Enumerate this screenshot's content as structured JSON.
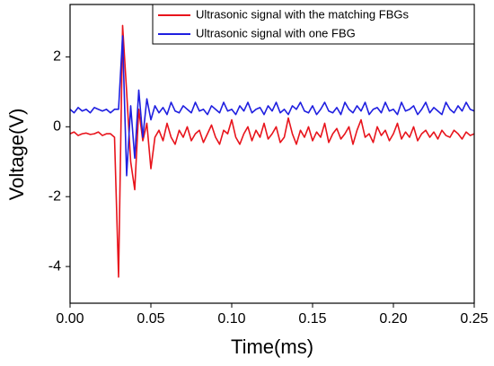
{
  "chart_data": {
    "type": "line",
    "x_label": "Time(ms)",
    "y_label": "Voltage(V)",
    "x": [
      0,
      0.0025,
      0.005,
      0.0075,
      0.01,
      0.0125,
      0.015,
      0.0175,
      0.02,
      0.0225,
      0.025,
      0.0275,
      0.03,
      0.0325,
      0.035,
      0.0375,
      0.04,
      0.0425,
      0.045,
      0.0475,
      0.05,
      0.0525,
      0.055,
      0.0575,
      0.06,
      0.0625,
      0.065,
      0.0675,
      0.07,
      0.0725,
      0.075,
      0.0775,
      0.08,
      0.0825,
      0.085,
      0.0875,
      0.09,
      0.0925,
      0.095,
      0.0975,
      0.1,
      0.1025,
      0.105,
      0.1075,
      0.11,
      0.1125,
      0.115,
      0.1175,
      0.12,
      0.1225,
      0.125,
      0.1275,
      0.13,
      0.1325,
      0.135,
      0.1375,
      0.14,
      0.1425,
      0.145,
      0.1475,
      0.15,
      0.1525,
      0.155,
      0.1575,
      0.16,
      0.1625,
      0.165,
      0.1675,
      0.17,
      0.1725,
      0.175,
      0.1775,
      0.18,
      0.1825,
      0.185,
      0.1875,
      0.19,
      0.1925,
      0.195,
      0.1975,
      0.2,
      0.2025,
      0.205,
      0.2075,
      0.21,
      0.2125,
      0.215,
      0.2175,
      0.22,
      0.2225,
      0.225,
      0.2275,
      0.23,
      0.2325,
      0.235,
      0.2375,
      0.24,
      0.2425,
      0.245,
      0.2475,
      0.25
    ],
    "series": [
      {
        "name": "Ultrasonic signal with the matching FBGs",
        "color": "#e8141c",
        "values": [
          -0.2,
          -0.15,
          -0.25,
          -0.2,
          -0.18,
          -0.22,
          -0.2,
          -0.15,
          -0.25,
          -0.2,
          -0.2,
          -0.3,
          -4.3,
          2.9,
          1.0,
          -1.0,
          -1.8,
          0.5,
          -0.4,
          0.1,
          -1.2,
          -0.3,
          -0.1,
          -0.4,
          0.1,
          -0.3,
          -0.5,
          -0.1,
          -0.3,
          0.0,
          -0.4,
          -0.2,
          -0.1,
          -0.45,
          -0.2,
          0.05,
          -0.3,
          -0.5,
          -0.1,
          -0.2,
          0.2,
          -0.3,
          -0.5,
          -0.2,
          0.0,
          -0.4,
          -0.1,
          -0.3,
          0.1,
          -0.35,
          -0.2,
          0.0,
          -0.45,
          -0.3,
          0.25,
          -0.2,
          -0.5,
          -0.1,
          -0.3,
          0.0,
          -0.4,
          -0.15,
          -0.3,
          0.1,
          -0.45,
          -0.2,
          -0.05,
          -0.35,
          -0.2,
          0.0,
          -0.5,
          -0.1,
          0.2,
          -0.3,
          -0.2,
          -0.45,
          0.0,
          -0.25,
          -0.1,
          -0.4,
          -0.2,
          0.1,
          -0.35,
          -0.15,
          -0.3,
          0.0,
          -0.4,
          -0.2,
          -0.1,
          -0.3,
          -0.15,
          -0.35,
          -0.1,
          -0.25,
          -0.3,
          -0.1,
          -0.2,
          -0.35,
          -0.15,
          -0.25,
          -0.2
        ]
      },
      {
        "name": "Ultrasonic signal with one FBG",
        "color": "#1f1fe0",
        "values": [
          0.5,
          0.4,
          0.55,
          0.45,
          0.5,
          0.4,
          0.55,
          0.5,
          0.45,
          0.5,
          0.4,
          0.5,
          0.5,
          2.6,
          -1.4,
          0.6,
          -0.9,
          1.05,
          -0.3,
          0.8,
          0.2,
          0.6,
          0.4,
          0.55,
          0.35,
          0.7,
          0.45,
          0.4,
          0.6,
          0.5,
          0.4,
          0.7,
          0.45,
          0.5,
          0.35,
          0.6,
          0.5,
          0.4,
          0.7,
          0.45,
          0.5,
          0.35,
          0.6,
          0.45,
          0.7,
          0.4,
          0.5,
          0.55,
          0.35,
          0.6,
          0.45,
          0.7,
          0.4,
          0.5,
          0.35,
          0.6,
          0.5,
          0.7,
          0.45,
          0.4,
          0.6,
          0.35,
          0.5,
          0.7,
          0.45,
          0.4,
          0.55,
          0.35,
          0.7,
          0.5,
          0.4,
          0.6,
          0.45,
          0.7,
          0.35,
          0.5,
          0.55,
          0.4,
          0.7,
          0.45,
          0.5,
          0.35,
          0.7,
          0.45,
          0.5,
          0.6,
          0.35,
          0.5,
          0.7,
          0.4,
          0.55,
          0.45,
          0.35,
          0.7,
          0.5,
          0.4,
          0.6,
          0.45,
          0.7,
          0.5,
          0.45
        ]
      }
    ],
    "xlim": [
      0,
      0.25
    ],
    "xticks": [
      {
        "value": 0,
        "label": "0.00"
      },
      0.05,
      {
        "value": 0.1,
        "label": "0.10"
      },
      0.15,
      {
        "value": 0.2,
        "label": "0.20"
      },
      0.25
    ],
    "ylim": [
      -5.05,
      3.5
    ],
    "yticks": [
      -4,
      -2,
      0,
      2
    ],
    "grid": false,
    "legend": "upper right"
  }
}
